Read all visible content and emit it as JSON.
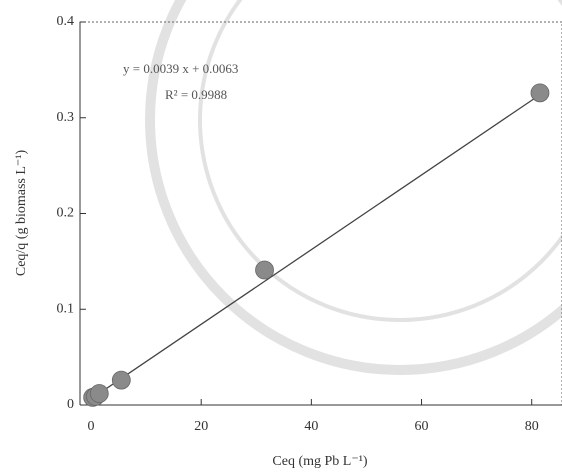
{
  "chart_data": {
    "type": "scatter",
    "x_label": "Ceq (mg Pb L⁻¹)",
    "y_label": "Ceq/q (g biomass L⁻¹)",
    "annotations": [
      "y = 0.0039 x + 0.0063",
      "R² = 0.9988"
    ],
    "x": [
      0.3,
      0.8,
      1.5,
      5.5,
      31.5,
      81.5
    ],
    "values": [
      0.008,
      0.009,
      0.012,
      0.026,
      0.141,
      0.326
    ],
    "color": "#8a8a8a",
    "trendline": {
      "x": [
        0,
        82
      ],
      "values": [
        0.0063,
        0.326
      ],
      "color": "#444"
    },
    "xlim": [
      -2,
      85.5
    ],
    "xticks": [
      0,
      20,
      40,
      60,
      80
    ],
    "ylim": [
      0,
      0.4
    ],
    "yticks": [
      0,
      0.1,
      0.2,
      0.3,
      0.4
    ]
  }
}
